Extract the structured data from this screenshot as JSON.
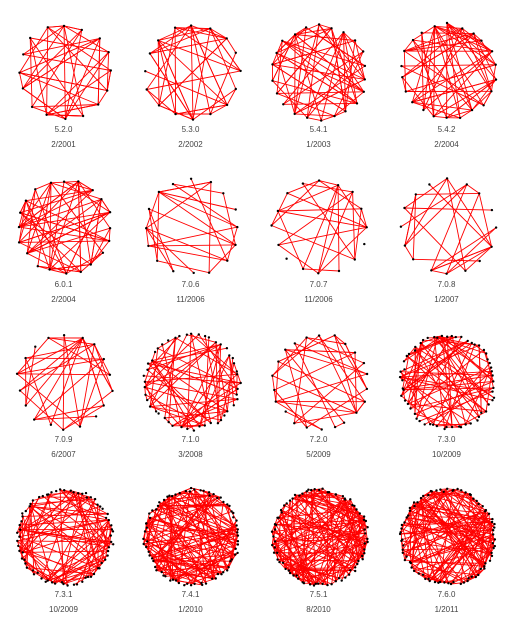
{
  "graphs": [
    {
      "version": "5.2.0",
      "date": "2/2001",
      "nodes": 16,
      "edges": 48,
      "seed": 11
    },
    {
      "version": "5.3.0",
      "date": "2/2002",
      "nodes": 16,
      "edges": 48,
      "seed": 23
    },
    {
      "version": "5.4.1",
      "date": "1/2003",
      "nodes": 22,
      "edges": 70,
      "seed": 37
    },
    {
      "version": "5.4.2",
      "date": "2/2004",
      "nodes": 22,
      "edges": 72,
      "seed": 41
    },
    {
      "version": "6.0.1",
      "date": "2/2004",
      "nodes": 20,
      "edges": 70,
      "seed": 53
    },
    {
      "version": "7.0.6",
      "date": "11/2006",
      "nodes": 16,
      "edges": 26,
      "seed": 61
    },
    {
      "version": "7.0.7",
      "date": "11/2006",
      "nodes": 16,
      "edges": 26,
      "seed": 67
    },
    {
      "version": "7.0.8",
      "date": "1/2007",
      "nodes": 16,
      "edges": 26,
      "seed": 73
    },
    {
      "version": "7.0.9",
      "date": "6/2007",
      "nodes": 18,
      "edges": 34,
      "seed": 79
    },
    {
      "version": "7.1.0",
      "date": "3/2008",
      "nodes": 48,
      "edges": 70,
      "seed": 83
    },
    {
      "version": "7.2.0",
      "date": "5/2009",
      "nodes": 22,
      "edges": 40,
      "seed": 89
    },
    {
      "version": "7.3.0",
      "date": "10/2009",
      "nodes": 60,
      "edges": 90,
      "seed": 97
    },
    {
      "version": "7.3.1",
      "date": "10/2009",
      "nodes": 72,
      "edges": 110,
      "seed": 101
    },
    {
      "version": "7.4.1",
      "date": "1/2010",
      "nodes": 76,
      "edges": 150,
      "seed": 107
    },
    {
      "version": "7.5.1",
      "date": "8/2010",
      "nodes": 80,
      "edges": 170,
      "seed": 113
    },
    {
      "version": "7.6.0",
      "date": "1/2011",
      "nodes": 82,
      "edges": 160,
      "seed": 127
    }
  ],
  "colors": {
    "edge": "#ff0000",
    "node": "#000000"
  }
}
